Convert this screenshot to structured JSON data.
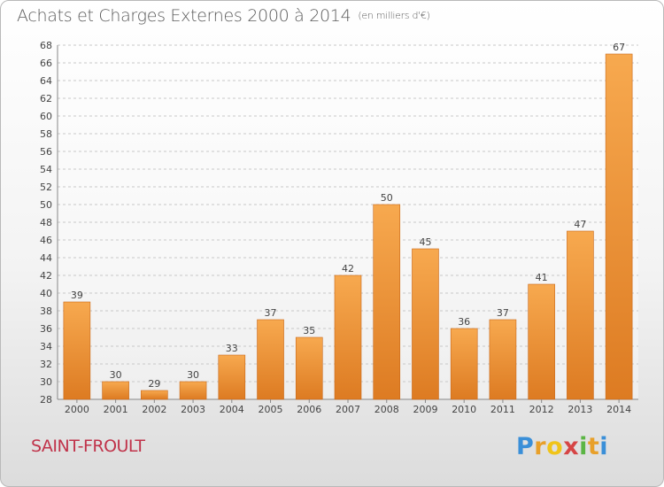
{
  "title": "Achats et Charges Externes 2000 à 2014",
  "subtitle": "(en milliers d'€)",
  "commune": "SAINT-FROULT",
  "brand": {
    "letters": [
      "P",
      "r",
      "o",
      "x",
      "i",
      "t",
      "i"
    ],
    "colors": [
      "#3a8fd8",
      "#e8a02a",
      "#f0c419",
      "#d64545",
      "#5bb544",
      "#e8a02a",
      "#3a8fd8"
    ]
  },
  "colors": {
    "bar_top": "#f7a94f",
    "bar_bottom": "#dd7b22",
    "bar_shade": "#c9681a",
    "grid": "#c8c8c8",
    "text": "#444444",
    "title": "#5b5b5b",
    "commune": "#c0334a"
  },
  "chart_data": {
    "type": "bar",
    "title": "Achats et Charges Externes 2000 à 2014",
    "subtitle": "(en milliers d'€)",
    "categories": [
      "2000",
      "2001",
      "2002",
      "2003",
      "2004",
      "2005",
      "2006",
      "2007",
      "2008",
      "2009",
      "2010",
      "2011",
      "2012",
      "2013",
      "2014"
    ],
    "values": [
      39,
      30,
      29,
      30,
      33,
      37,
      35,
      42,
      50,
      45,
      36,
      37,
      41,
      47,
      67
    ],
    "ylim": [
      28,
      68
    ],
    "ytick_step": 2,
    "grid": true,
    "xlabel": "",
    "ylabel": ""
  }
}
